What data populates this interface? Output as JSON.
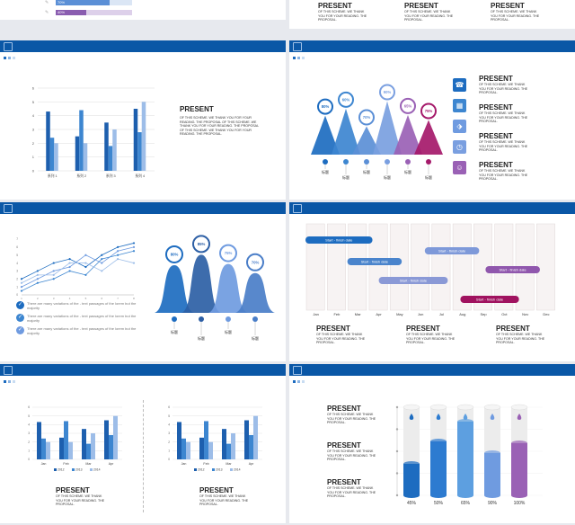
{
  "top_partial": {
    "bars": [
      {
        "label": "70%"
      },
      {
        "label": "40%"
      }
    ],
    "blocks": [
      {
        "title": "PRESENT",
        "body": "OF THIS SCHEME. WE THANK YOU FOR YOUR READING. THE PROPOSAL."
      },
      {
        "title": "PRESENT",
        "body": "OF THIS SCHEME. WE THANK YOU FOR YOUR READING. THE PROPOSAL."
      },
      {
        "title": "PRESENT",
        "body": "OF THIS SCHEME. WE THANK YOU FOR YOUR READING. THE PROPOSAL."
      }
    ]
  },
  "slide_bar": {
    "title": "PRESENT",
    "body": "OF THIS SCHEME. WE THANK YOU FOR YOUR READING. THE PROPOSAL OF THIS SCHEME. WE THANK YOU FOR YOUR READING. THE PROPOSAL OF THIS SCHEME. WE THANK YOU FOR YOUR READING. THE PROPOSAL.",
    "chart_data": {
      "type": "bar",
      "categories": [
        "系列 1",
        "系列 2",
        "系列 3",
        "系列 4"
      ],
      "series": [
        {
          "values": [
            4.3,
            2.5,
            3.5,
            4.5
          ]
        },
        {
          "values": [
            2.4,
            4.4,
            1.8,
            2.8
          ]
        },
        {
          "values": [
            2,
            2,
            3,
            5
          ]
        }
      ],
      "ylim": [
        0,
        6
      ],
      "yticks": [
        "0",
        "1",
        "2",
        "3",
        "4",
        "5",
        "6"
      ]
    }
  },
  "slide_peaks": {
    "peaks": [
      "80%",
      "60%",
      "70%",
      "90%",
      "65%",
      "75%"
    ],
    "labels": [
      "标题",
      "标题",
      "标题",
      "标题",
      "标题",
      "标题"
    ],
    "blocks": [
      {
        "title": "PRESENT",
        "body": "OF THIS SCHEME. WE THANK YOU FOR YOUR READING. THE PROPOSAL.",
        "icon": "phone-icon"
      },
      {
        "title": "PRESENT",
        "body": "OF THIS SCHEME. WE THANK YOU FOR YOUR READING. THE PROPOSAL.",
        "icon": "calendar-icon"
      },
      {
        "title": "PRESENT",
        "body": "OF THIS SCHEME. WE THANK YOU FOR YOUR READING. THE PROPOSAL.",
        "icon": "clock-icon"
      },
      {
        "title": "PRESENT",
        "body": "OF THIS SCHEME. WE THANK YOU FOR YOUR READING. THE PROPOSAL.",
        "icon": "users-icon"
      }
    ],
    "colors": [
      "#1d6cc0",
      "#3d86d0",
      "#5b8fd6",
      "#7a9fe0",
      "#9a61b5",
      "#a5196a"
    ]
  },
  "slide_line": {
    "chart_data": {
      "type": "line",
      "x": [
        "1",
        "2",
        "3",
        "4",
        "5",
        "6",
        "7",
        "8"
      ],
      "series": [
        {
          "values": [
            2,
            3,
            4,
            4.5,
            3.5,
            5,
            6,
            6.5
          ]
        },
        {
          "values": [
            1,
            2,
            3,
            3.5,
            5,
            4,
            5.5,
            6
          ]
        },
        {
          "values": [
            0.5,
            1.5,
            2,
            3,
            2.5,
            4.5,
            5,
            5.5
          ]
        },
        {
          "values": [
            1.5,
            2.5,
            2.5,
            4,
            4,
            3,
            4.5,
            4
          ]
        }
      ],
      "ylim": [
        0,
        7
      ]
    },
    "checks": [
      "There are many variations of the - text passages of the lorem but the majority",
      "There are many variations of the - text passages of the lorem but the majority",
      "There are many variations of the - text passages of the lorem but the majority"
    ],
    "domes": [
      "80%",
      "85%",
      "75%",
      "70%"
    ],
    "dome_labels": [
      "标题",
      "标题",
      "标题",
      "标题"
    ]
  },
  "slide_gantt": {
    "months": [
      "Jan",
      "Feb",
      "Mar",
      "Apr",
      "May",
      "Jun",
      "Jul",
      "Aug",
      "Sep",
      "Oct",
      "Nov",
      "Dec"
    ],
    "tasks": [
      {
        "label": "Start - finish date",
        "color": "#1d6cc0",
        "start": 0,
        "end": 3.2
      },
      {
        "label": "Start - finish date",
        "color": "#4a84cc",
        "start": 2,
        "end": 4.6
      },
      {
        "label": "Start - finish date",
        "color": "#7e99d9",
        "start": 5.7,
        "end": 8.3
      },
      {
        "label": "Start - finish date",
        "color": "#8a99d6",
        "start": 3.5,
        "end": 6.8
      },
      {
        "label": "Start - finish date",
        "color": "#9057ad",
        "start": 8.6,
        "end": 11.2
      },
      {
        "label": "Start - finish date",
        "color": "#a0125f",
        "start": 7.4,
        "end": 10.2
      }
    ],
    "blocks": [
      {
        "title": "PRESENT",
        "body": "OF THIS SCHEME. WE THANK YOU FOR YOUR READING. THE PROPOSAL."
      },
      {
        "title": "PRESENT",
        "body": "OF THIS SCHEME. WE THANK YOU FOR YOUR READING. THE PROPOSAL."
      },
      {
        "title": "PRESENT",
        "body": "OF THIS SCHEME. WE THANK YOU FOR YOUR READING. THE PROPOSAL."
      }
    ]
  },
  "slide_twobar": {
    "chart_data": [
      {
        "type": "bar",
        "categories": [
          "Jan",
          "Feb",
          "Mar",
          "Apr"
        ],
        "series": [
          {
            "name": "2012",
            "values": [
              4.3,
              2.5,
              3.5,
              4.5
            ]
          },
          {
            "name": "2013",
            "values": [
              2.4,
              4.4,
              1.8,
              2.8
            ]
          },
          {
            "name": "2014",
            "values": [
              2,
              2,
              3,
              5
            ]
          }
        ],
        "ylim": [
          0,
          6
        ]
      },
      {
        "type": "bar",
        "categories": [
          "Jan",
          "Feb",
          "Mar",
          "Apr"
        ],
        "series": [
          {
            "name": "2012",
            "values": [
              4.3,
              2.5,
              3.5,
              4.5
            ]
          },
          {
            "name": "2013",
            "values": [
              2.4,
              4.4,
              1.8,
              2.8
            ]
          },
          {
            "name": "2014",
            "values": [
              2,
              2,
              3,
              5
            ]
          }
        ],
        "ylim": [
          0,
          6
        ]
      }
    ],
    "blocks": [
      {
        "title": "PRESENT",
        "body": "OF THIS SCHEME. WE THANK YOU FOR YOUR READING. THE PROPOSAL."
      },
      {
        "title": "PRESENT",
        "body": "OF THIS SCHEME. WE THANK YOU FOR YOUR READING. THE PROPOSAL."
      }
    ]
  },
  "slide_cyl": {
    "blocks": [
      {
        "title": "PRESENT",
        "body": "OF THIS SCHEME. WE THANK YOU FOR YOUR READING. THE PROPOSAL."
      },
      {
        "title": "PRESENT",
        "body": "OF THIS SCHEME. WE THANK YOU FOR YOUR READING. THE PROPOSAL."
      },
      {
        "title": "PRESENT",
        "body": "OF THIS SCHEME. WE THANK YOU FOR YOUR READING. THE PROPOSAL."
      }
    ],
    "chart_data": {
      "type": "bar",
      "categories": [
        "1",
        "2",
        "3",
        "4",
        "5"
      ],
      "values": [
        45,
        50,
        65,
        90,
        100
      ],
      "labels": [
        "45%",
        "50%",
        "65%",
        "90%",
        "100%"
      ],
      "ylim": [
        0,
        100
      ]
    },
    "colors": [
      "#1d6cc0",
      "#2d7bd0",
      "#5d9fe0",
      "#6f9be0",
      "#9a61b5"
    ]
  }
}
